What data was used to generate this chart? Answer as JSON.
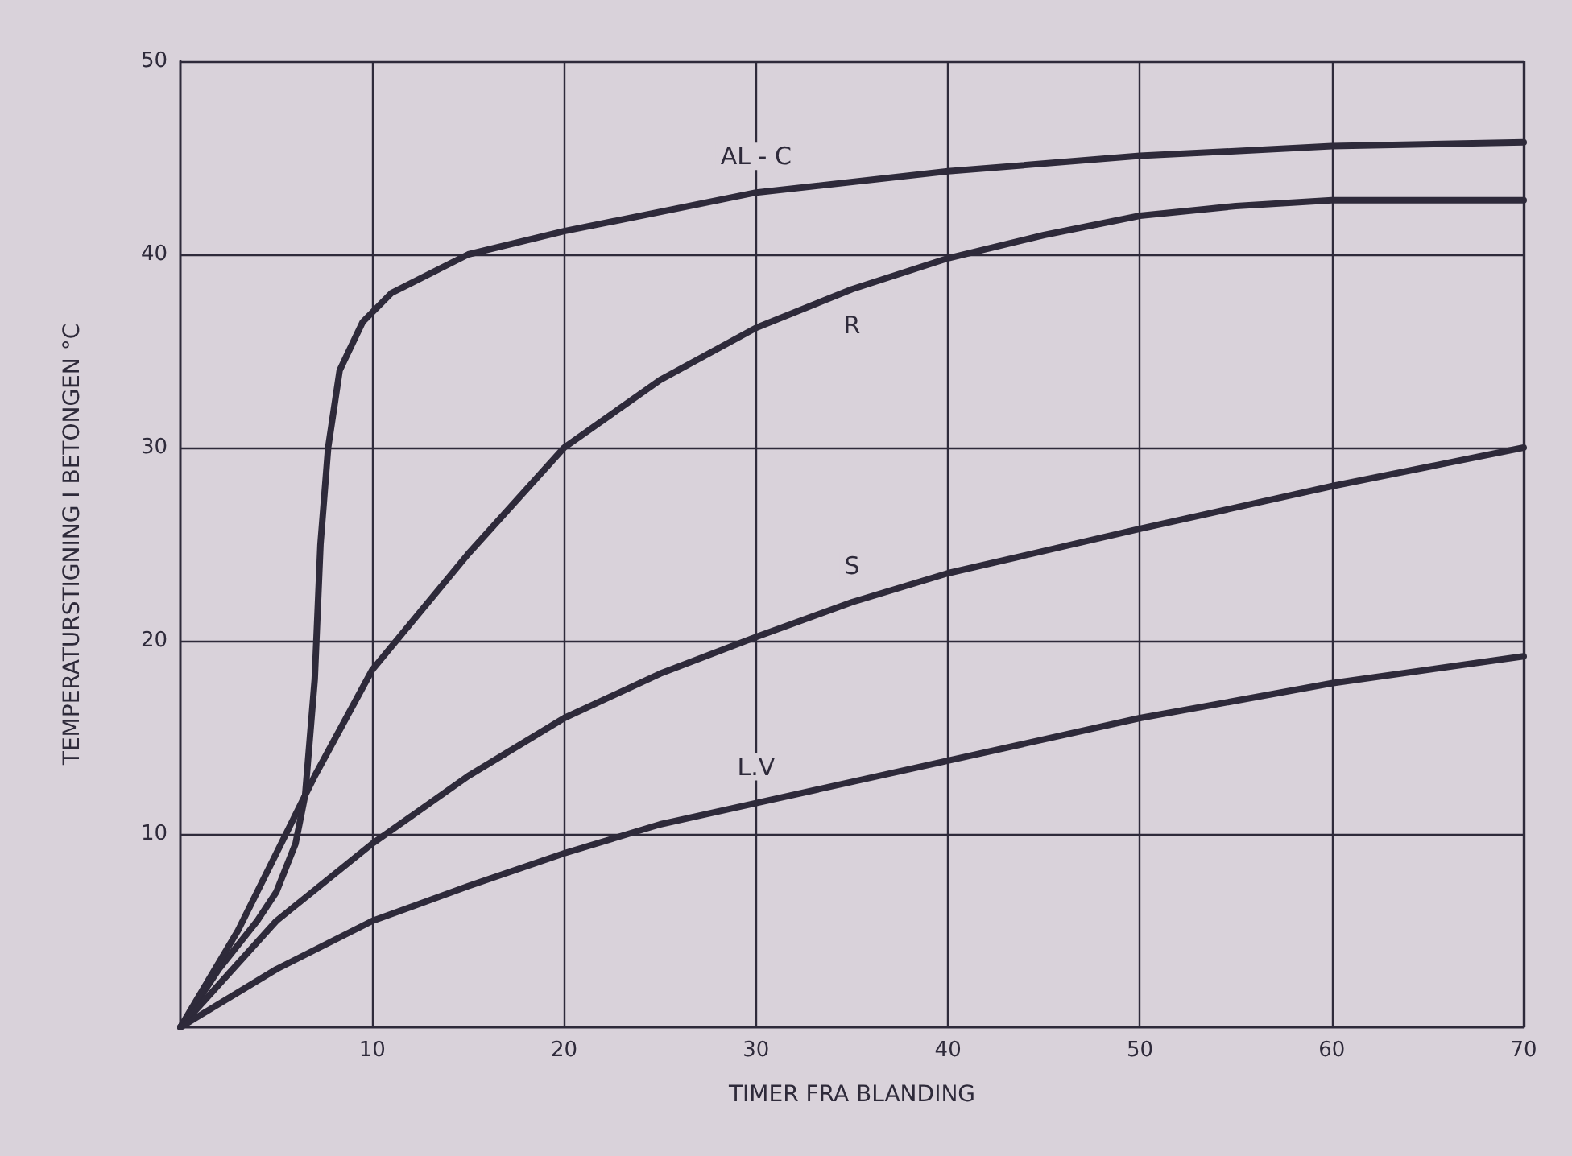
{
  "chart_data": {
    "type": "line",
    "xlabel": "TIMER FRA BLANDING",
    "ylabel": "TEMPERATURSTIGNING I BETONGEN °C",
    "xlim": [
      0,
      70
    ],
    "ylim": [
      0,
      50
    ],
    "xticks": [
      10,
      20,
      30,
      40,
      50,
      60,
      70
    ],
    "yticks": [
      10,
      20,
      30,
      40,
      50
    ],
    "grid": true,
    "legend": false,
    "marker": "none",
    "line_style": "solid",
    "series": [
      {
        "name": "AL - C",
        "color": "#2e2a3a",
        "x": [
          0,
          2,
          4,
          5,
          6,
          6.5,
          7,
          7.3,
          7.7,
          8.3,
          9.5,
          11,
          15,
          20,
          30,
          40,
          50,
          60,
          70
        ],
        "values": [
          0,
          3,
          5.5,
          7,
          9.5,
          12,
          18,
          25,
          30,
          34,
          36.5,
          38,
          40,
          41.2,
          43.2,
          44.3,
          45.1,
          45.6,
          45.8
        ]
      },
      {
        "name": "R",
        "color": "#2e2a3a",
        "x": [
          0,
          3,
          5,
          7,
          10,
          15,
          20,
          25,
          30,
          35,
          40,
          45,
          50,
          55,
          60,
          70
        ],
        "values": [
          0,
          5,
          9,
          13,
          18.5,
          24.5,
          30,
          33.5,
          36.2,
          38.2,
          39.8,
          41,
          42,
          42.5,
          42.8,
          42.8
        ]
      },
      {
        "name": "S",
        "color": "#2e2a3a",
        "x": [
          0,
          5,
          10,
          15,
          20,
          25,
          30,
          35,
          40,
          50,
          60,
          70
        ],
        "values": [
          0,
          5.5,
          9.5,
          13,
          16,
          18.3,
          20.2,
          22,
          23.5,
          25.8,
          28,
          30
        ]
      },
      {
        "name": "L.V",
        "color": "#2e2a3a",
        "x": [
          0,
          5,
          10,
          15,
          20,
          25,
          30,
          40,
          50,
          60,
          70
        ],
        "values": [
          0,
          3,
          5.5,
          7.3,
          9,
          10.5,
          11.6,
          13.8,
          16,
          17.8,
          19.2
        ]
      }
    ]
  }
}
